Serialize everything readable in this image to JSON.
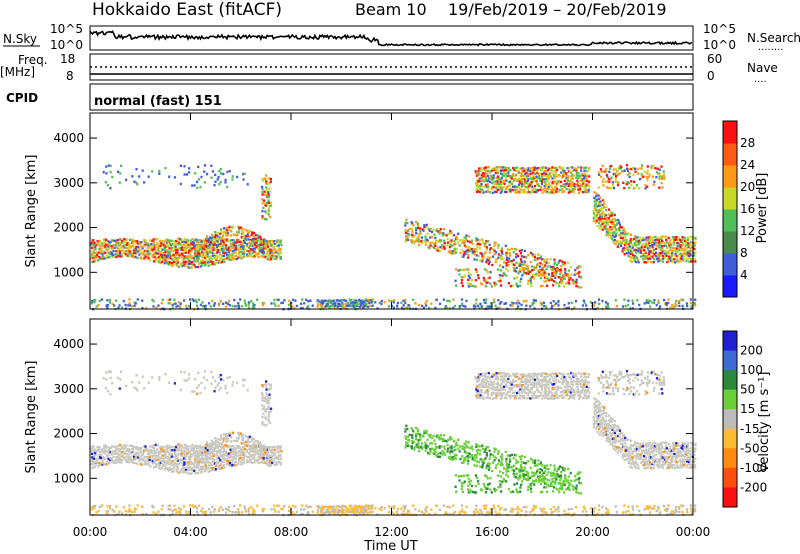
{
  "header": {
    "title": "Hokkaido East (fitACF)",
    "beam": "Beam 10",
    "dates": "19/Feb/2019 – 20/Feb/2019"
  },
  "panels": {
    "nsky": {
      "label": "N.Sky",
      "left_ticks": [
        "10^5",
        "10^0"
      ],
      "right_ticks": [
        "10^5",
        "10^0"
      ],
      "right_label": "N.Search",
      "right_dots": "........"
    },
    "freq": {
      "label_line1": "Freq.",
      "label_line2": "[MHz]",
      "left_ticks": [
        "18",
        "8"
      ],
      "right_ticks": [
        "60",
        "0"
      ],
      "right_label": "Nave",
      "right_dots": "...."
    },
    "cpid": {
      "label": "CPID",
      "value": "normal (fast) 151"
    }
  },
  "chart_data": [
    {
      "type": "heatmap",
      "name": "power",
      "ylabel": "Slant Range [km]",
      "yticks": [
        1000,
        2000,
        3000,
        4000
      ],
      "ylim": [
        180,
        4560
      ],
      "xlim": [
        0,
        24
      ],
      "colorbar": {
        "label": "Power [dB]",
        "ticks": [
          4,
          8,
          12,
          16,
          20,
          24,
          28
        ],
        "colors": [
          "#1a1aff",
          "#3f5fd8",
          "#4a8a4a",
          "#4fc055",
          "#c8d826",
          "#ff9a19",
          "#ff5a14",
          "#ff1010"
        ]
      }
    },
    {
      "type": "heatmap",
      "name": "velocity",
      "ylabel": "Slant Range [km]",
      "yticks": [
        1000,
        2000,
        3000,
        4000
      ],
      "ylim": [
        180,
        4560
      ],
      "xlim": [
        0,
        24
      ],
      "xlabel": "Time UT",
      "xticks": [
        "00:00",
        "04:00",
        "08:00",
        "12:00",
        "16:00",
        "20:00",
        "00:00"
      ],
      "colorbar": {
        "label": "Velocity [m s⁻¹]",
        "ticks": [
          200,
          100,
          50,
          15,
          -15,
          -50,
          -100,
          -200
        ],
        "colors": [
          "#2020d0",
          "#3c6cd6",
          "#2a8a3a",
          "#6ad03a",
          "#bbbbbb",
          "#ffbb33",
          "#ff8a10",
          "#ff4e10",
          "#ff1010"
        ]
      },
      "ground_color": "#c8c8be"
    }
  ]
}
